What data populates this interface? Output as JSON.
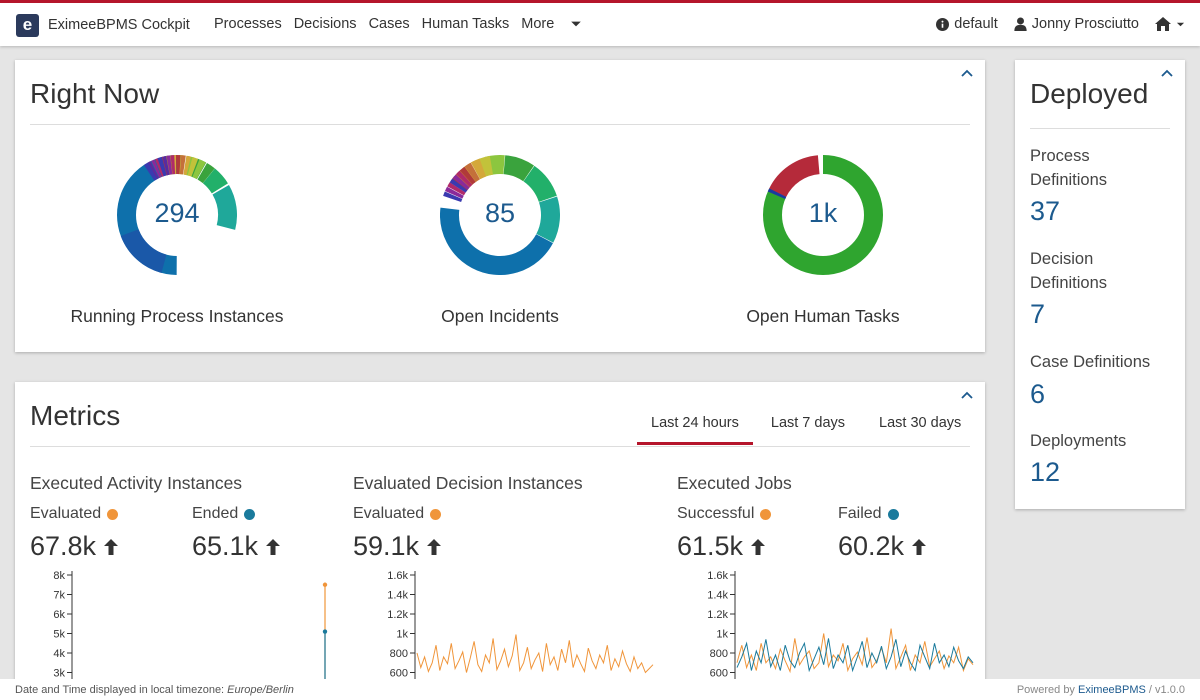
{
  "app": {
    "logo_letter": "e",
    "name": "EximeeBPMS Cockpit"
  },
  "nav": {
    "links": [
      "Processes",
      "Decisions",
      "Cases",
      "Human Tasks",
      "More"
    ]
  },
  "nav_right": {
    "engine": "default",
    "user": "Jonny Prosciutto"
  },
  "right_now": {
    "title": "Right Now",
    "cards": [
      {
        "value": "294",
        "label": "Running Process Instances"
      },
      {
        "value": "85",
        "label": "Open Incidents"
      },
      {
        "value": "1k",
        "label": "Open Human Tasks"
      }
    ]
  },
  "deployed": {
    "title": "Deployed",
    "items": [
      {
        "label": "Process Definitions",
        "value": "37"
      },
      {
        "label": "Decision Definitions",
        "value": "7"
      },
      {
        "label": "Case Definitions",
        "value": "6"
      },
      {
        "label": "Deployments",
        "value": "12"
      }
    ]
  },
  "metrics": {
    "title": "Metrics",
    "tabs": [
      "Last 24 hours",
      "Last 7 days",
      "Last 30 days"
    ],
    "active_tab": "Last 24 hours",
    "groups": [
      {
        "title": "Executed Activity Instances",
        "stats": [
          {
            "label": "Evaluated",
            "value": "67.8k",
            "color": "#f0953a"
          },
          {
            "label": "Ended",
            "value": "65.1k",
            "color": "#1a7a9c"
          }
        ]
      },
      {
        "title": "Evaluated Decision Instances",
        "stats": [
          {
            "label": "Evaluated",
            "value": "59.1k",
            "color": "#f0953a"
          }
        ]
      },
      {
        "title": "Executed Jobs",
        "stats": [
          {
            "label": "Successful",
            "value": "61.5k",
            "color": "#f0953a"
          },
          {
            "label": "Failed",
            "value": "60.2k",
            "color": "#1a7a9c"
          }
        ]
      }
    ]
  },
  "chart_data": [
    {
      "type": "line",
      "title": "Executed Activity Instances",
      "y_ticks": [
        "8k",
        "7k",
        "6k",
        "5k",
        "4k",
        "3k"
      ],
      "ylim": [
        3000,
        8000
      ],
      "series": [
        {
          "name": "Evaluated",
          "color": "#f0953a",
          "values": [
            7500
          ]
        },
        {
          "name": "Ended",
          "color": "#1a7a9c",
          "values": [
            5100
          ]
        }
      ]
    },
    {
      "type": "line",
      "title": "Evaluated Decision Instances",
      "y_ticks": [
        "1.6k",
        "1.4k",
        "1.2k",
        "1k",
        "800",
        "600"
      ],
      "ylim": [
        600,
        1600
      ],
      "series": [
        {
          "name": "Evaluated",
          "color": "#f0953a",
          "values": [
            800,
            650,
            760,
            610,
            700,
            880,
            620,
            760,
            690,
            900,
            640,
            720,
            810,
            600,
            750,
            920,
            680,
            610,
            780,
            700,
            950,
            630,
            720,
            840,
            660,
            770,
            990,
            620,
            700,
            860,
            640,
            730,
            800,
            610,
            900,
            680,
            760,
            620,
            840,
            700,
            930,
            650,
            780,
            690,
            610,
            850,
            720,
            640,
            780,
            700,
            880,
            620,
            740,
            660,
            820,
            690,
            610,
            760,
            640,
            700,
            600,
            640,
            680
          ]
        }
      ]
    },
    {
      "type": "line",
      "title": "Executed Jobs",
      "y_ticks": [
        "1.6k",
        "1.4k",
        "1.2k",
        "1k",
        "800",
        "600"
      ],
      "ylim": [
        600,
        1600
      ],
      "series": [
        {
          "name": "Successful",
          "color": "#f0953a",
          "values": [
            700,
            880,
            650,
            780,
            620,
            900,
            700,
            760,
            640,
            840,
            720,
            610,
            950,
            680,
            760,
            820,
            640,
            700,
            1000,
            660,
            780,
            720,
            900,
            620,
            740,
            810,
            680,
            960,
            650,
            720,
            850,
            700,
            1050,
            640,
            760,
            880,
            620,
            780,
            700,
            920,
            660,
            740,
            820,
            640,
            770,
            700,
            860,
            620,
            740,
            680
          ]
        },
        {
          "name": "Failed",
          "color": "#1a7a9c",
          "values": [
            650,
            760,
            900,
            620,
            820,
            700,
            940,
            660,
            780,
            620,
            880,
            720,
            650,
            800,
            900,
            620,
            740,
            860,
            680,
            950,
            640,
            780,
            700,
            880,
            620,
            760,
            920,
            650,
            800,
            700,
            870,
            640,
            760,
            940,
            660,
            820,
            700,
            620,
            880,
            760,
            640,
            900,
            700,
            780,
            660,
            860,
            720,
            640,
            760,
            700
          ]
        }
      ]
    }
  ],
  "footer": {
    "tz_prefix": "Date and Time displayed in local timezone: ",
    "tz": "Europe/Berlin",
    "powered": "Powered by ",
    "powered_link": "EximeeBPMS",
    "version": " / v1.0.0"
  }
}
